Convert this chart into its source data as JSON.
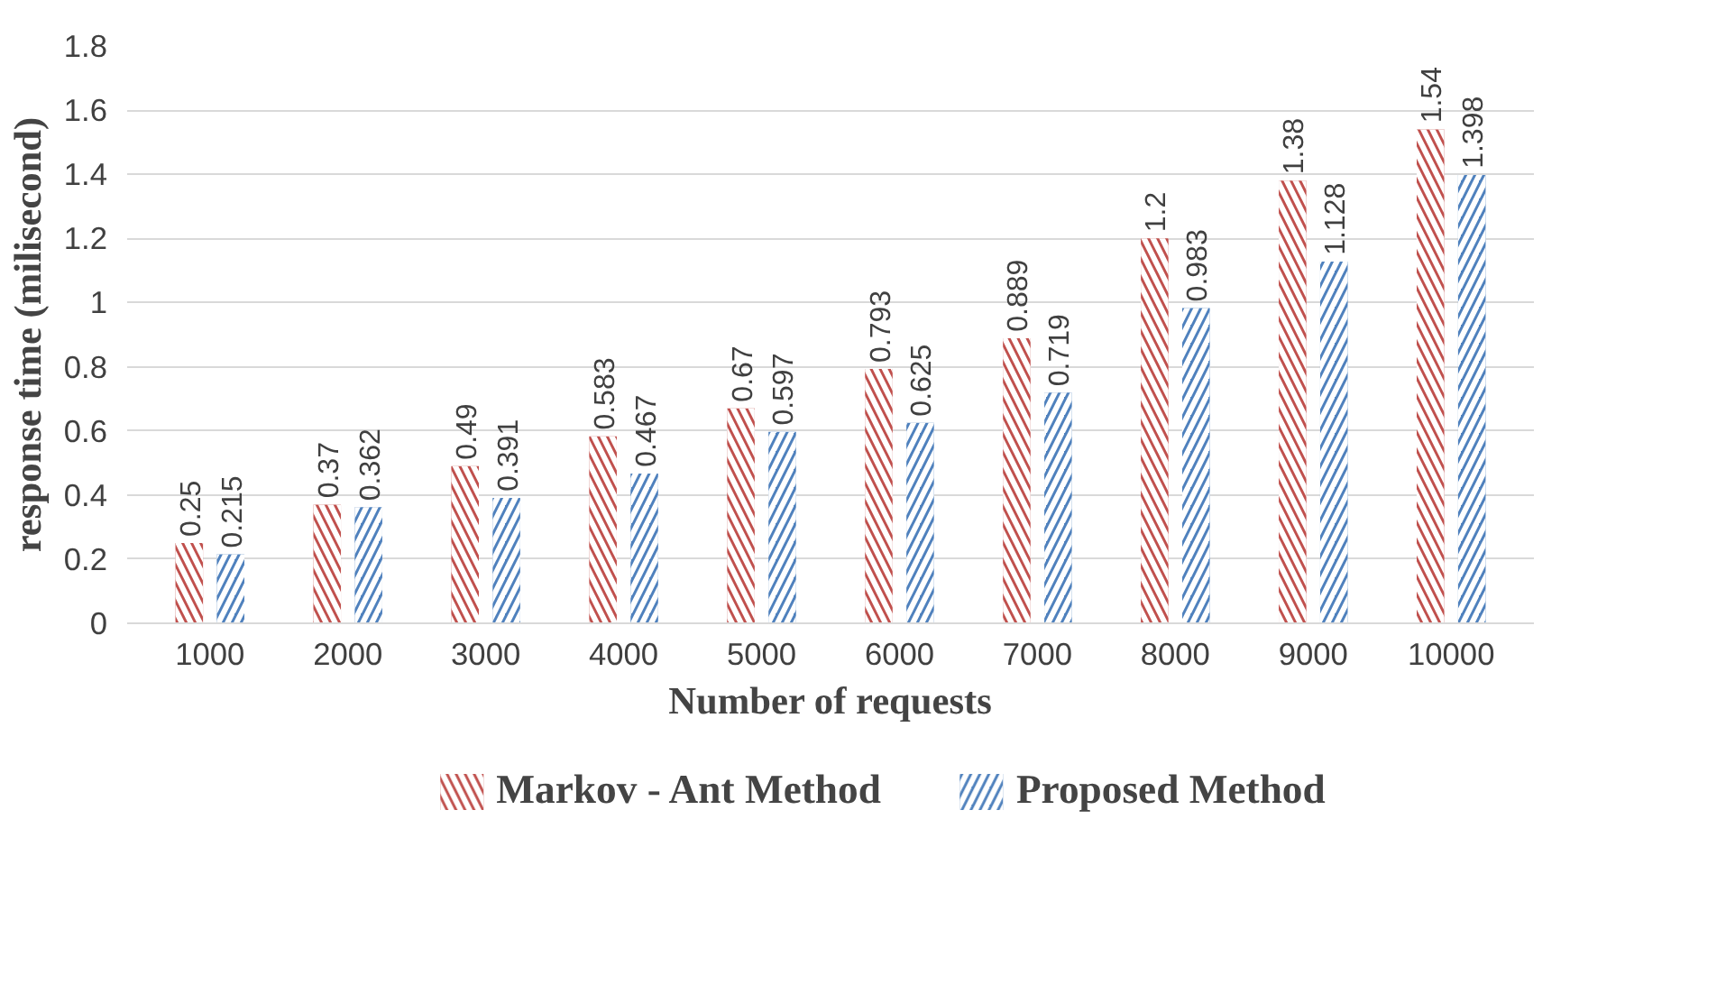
{
  "chart_data": {
    "type": "bar",
    "xlabel": "Number of requests",
    "ylabel": "response time (milisecond)",
    "categories": [
      "1000",
      "2000",
      "3000",
      "4000",
      "5000",
      "6000",
      "7000",
      "8000",
      "9000",
      "10000"
    ],
    "series": [
      {
        "name": "Markov - Ant Method",
        "color": "#c0504d",
        "values": [
          0.25,
          0.37,
          0.49,
          0.583,
          0.67,
          0.793,
          0.889,
          1.2,
          1.38,
          1.54
        ]
      },
      {
        "name": "Proposed Method",
        "color": "#4f81bd",
        "values": [
          0.215,
          0.362,
          0.391,
          0.467,
          0.597,
          0.625,
          0.719,
          0.983,
          1.128,
          1.398
        ]
      }
    ],
    "ylim": [
      0,
      1.8
    ],
    "yticks": [
      0,
      0.2,
      0.4,
      0.6,
      0.8,
      1,
      1.2,
      1.4,
      1.6,
      1.8
    ],
    "grid": "y",
    "legend": "bottom",
    "data_labels": true
  }
}
